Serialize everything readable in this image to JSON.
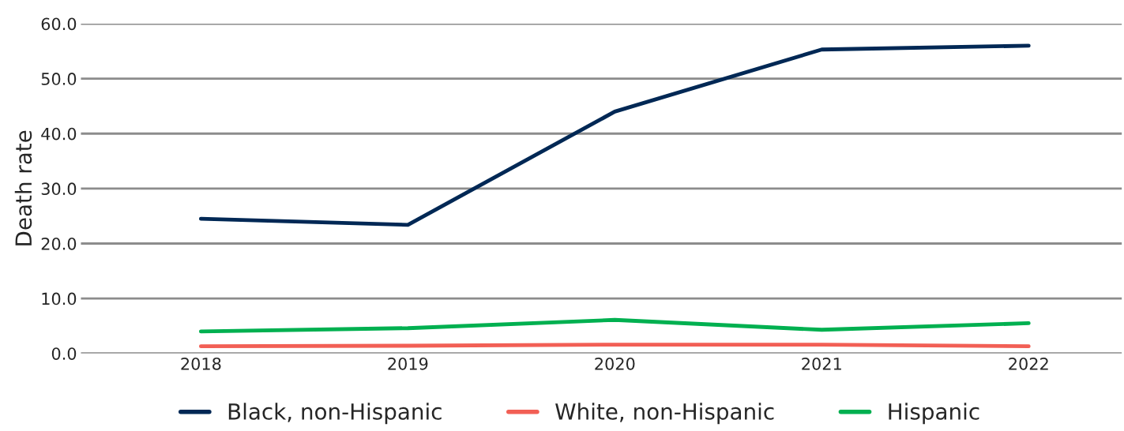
{
  "chart_data": {
    "type": "line",
    "ylabel": "Death rate",
    "categories": [
      "2018",
      "2019",
      "2020",
      "2021",
      "2022"
    ],
    "series": [
      {
        "name": "Black, non-Hispanic",
        "color": "#002855",
        "values": [
          24.5,
          23.4,
          44.0,
          55.3,
          56.0
        ]
      },
      {
        "name": "White, non-Hispanic",
        "color": "#f25f55",
        "values": [
          1.3,
          1.4,
          1.6,
          1.6,
          1.3
        ]
      },
      {
        "name": "Hispanic",
        "color": "#00b050",
        "values": [
          4.0,
          4.6,
          6.1,
          4.3,
          5.5
        ]
      }
    ],
    "ylim": [
      0,
      60
    ],
    "yticks": [
      {
        "value": 0,
        "label": "0.0"
      },
      {
        "value": 10,
        "label": "10.0"
      },
      {
        "value": 20,
        "label": "20.0"
      },
      {
        "value": 30,
        "label": "30.0"
      },
      {
        "value": 40,
        "label": "40.0"
      },
      {
        "value": 50,
        "label": "50.0"
      },
      {
        "value": 60,
        "label": "60.0"
      }
    ],
    "grid": "y",
    "legend": "bottom",
    "marker": "none",
    "line_style": "solid"
  }
}
